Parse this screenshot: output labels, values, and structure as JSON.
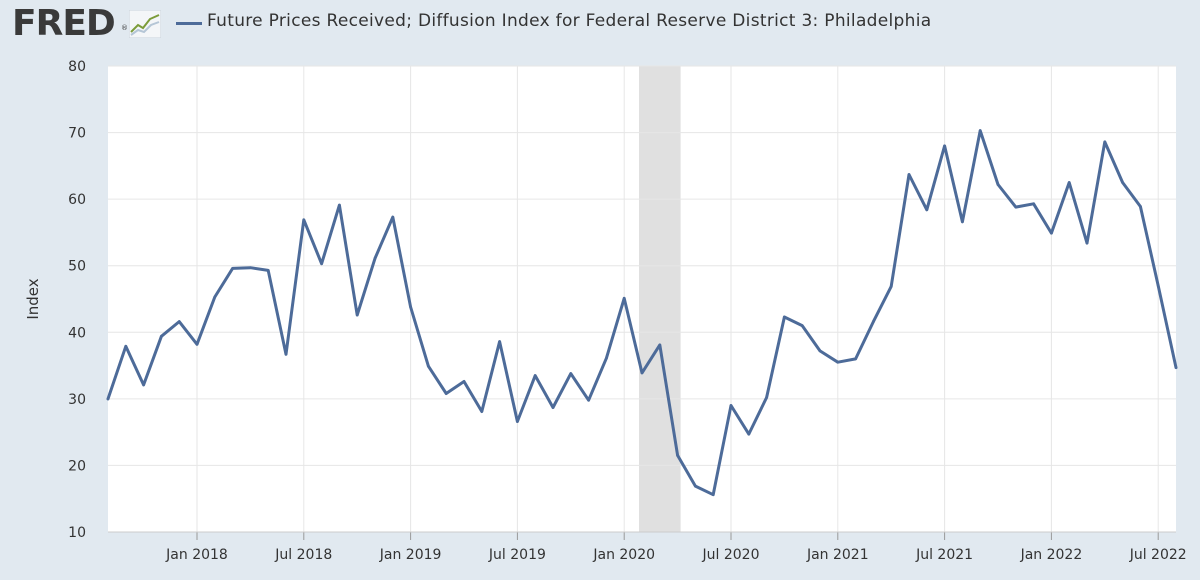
{
  "header": {
    "logo_text": "FRED",
    "logo_mark": "®",
    "series_title": "Future Prices Received; Diffusion Index for Federal Reserve District 3: Philadelphia"
  },
  "colors": {
    "series": "#4d6b99",
    "background": "#e1e9f0",
    "plot_background": "#ffffff",
    "recession": "#e0e0e0",
    "grid": "#e6e6e6"
  },
  "chart_data": {
    "type": "line",
    "title": "Future Prices Received; Diffusion Index for Federal Reserve District 3: Philadelphia",
    "xlabel": "",
    "ylabel": "Index",
    "ylim": [
      10,
      80
    ],
    "yticks": [
      10,
      20,
      30,
      40,
      50,
      60,
      70,
      80
    ],
    "xlim": [
      "2017-08",
      "2022-08"
    ],
    "xticks": [
      {
        "date": "2018-01",
        "label": "Jan 2018"
      },
      {
        "date": "2018-07",
        "label": "Jul 2018"
      },
      {
        "date": "2019-01",
        "label": "Jan 2019"
      },
      {
        "date": "2019-07",
        "label": "Jul 2019"
      },
      {
        "date": "2020-01",
        "label": "Jan 2020"
      },
      {
        "date": "2020-07",
        "label": "Jul 2020"
      },
      {
        "date": "2021-01",
        "label": "Jan 2021"
      },
      {
        "date": "2021-07",
        "label": "Jul 2021"
      },
      {
        "date": "2022-01",
        "label": "Jan 2022"
      },
      {
        "date": "2022-07",
        "label": "Jul 2022"
      }
    ],
    "recession": {
      "start": "2020-02",
      "end": "2020-04"
    },
    "series": [
      {
        "name": "Future Prices Received; Diffusion Index for Federal Reserve District 3: Philadelphia",
        "x": [
          "2017-08",
          "2017-09",
          "2017-10",
          "2017-11",
          "2017-12",
          "2018-01",
          "2018-02",
          "2018-03",
          "2018-04",
          "2018-05",
          "2018-06",
          "2018-07",
          "2018-08",
          "2018-09",
          "2018-10",
          "2018-11",
          "2018-12",
          "2019-01",
          "2019-02",
          "2019-03",
          "2019-04",
          "2019-05",
          "2019-06",
          "2019-07",
          "2019-08",
          "2019-09",
          "2019-10",
          "2019-11",
          "2019-12",
          "2020-01",
          "2020-02",
          "2020-03",
          "2020-04",
          "2020-05",
          "2020-06",
          "2020-07",
          "2020-08",
          "2020-09",
          "2020-10",
          "2020-11",
          "2020-12",
          "2021-01",
          "2021-02",
          "2021-03",
          "2021-04",
          "2021-05",
          "2021-06",
          "2021-07",
          "2021-08",
          "2021-09",
          "2021-10",
          "2021-11",
          "2021-12",
          "2022-01",
          "2022-02",
          "2022-03",
          "2022-04",
          "2022-05",
          "2022-06",
          "2022-07",
          "2022-08"
        ],
        "values": [
          30.0,
          37.9,
          32.1,
          39.4,
          41.6,
          38.2,
          45.3,
          49.6,
          49.7,
          49.3,
          36.7,
          56.9,
          50.3,
          59.1,
          42.6,
          51.1,
          57.3,
          43.8,
          34.9,
          30.8,
          32.6,
          28.1,
          38.6,
          26.6,
          33.5,
          28.7,
          33.8,
          29.8,
          36.1,
          45.1,
          33.9,
          38.1,
          21.5,
          16.9,
          15.6,
          29.0,
          24.7,
          30.2,
          42.3,
          41.0,
          37.2,
          35.5,
          36.0,
          41.6,
          46.9,
          63.7,
          58.4,
          68.0,
          56.6,
          70.3,
          62.2,
          58.8,
          59.3,
          54.9,
          62.5,
          53.4,
          68.6,
          62.5,
          58.9,
          47.0,
          34.7
        ]
      }
    ]
  }
}
